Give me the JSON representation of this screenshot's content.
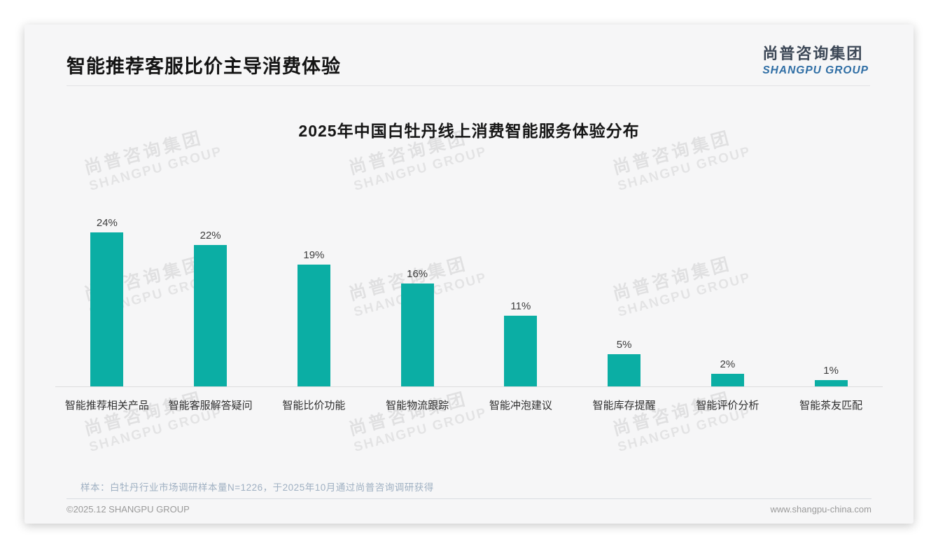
{
  "page": {
    "title": "智能推荐客服比价主导消费体验",
    "logo": {
      "cn": "尚普咨询集团",
      "en": "SHANGPU GROUP"
    },
    "watermark": {
      "cn": "尚普咨询集团",
      "en": "SHANGPU GROUP"
    },
    "note": "样本：白牡丹行业市场调研样本量N=1226，于2025年10月通过尚普咨询调研获得",
    "footer": {
      "copyright": "©2025.12 SHANGPU GROUP",
      "website": "www.shangpu-china.com"
    }
  },
  "chart_data": {
    "type": "bar",
    "title": "2025年中国白牡丹线上消费智能服务体验分布",
    "categories": [
      "智能推荐相关产品",
      "智能客服解答疑问",
      "智能比价功能",
      "智能物流跟踪",
      "智能冲泡建议",
      "智能库存提醒",
      "智能评价分析",
      "智能茶友匹配"
    ],
    "values": [
      24,
      22,
      19,
      16,
      11,
      5,
      2,
      1
    ],
    "value_labels": [
      "24%",
      "22%",
      "19%",
      "16%",
      "11%",
      "5%",
      "2%",
      "1%"
    ],
    "bar_color": "#0baea4",
    "axis_color": "#dcdcde",
    "ylim": [
      0,
      26
    ],
    "grid": false,
    "legend": "none",
    "value_label_position": "above-bar"
  }
}
